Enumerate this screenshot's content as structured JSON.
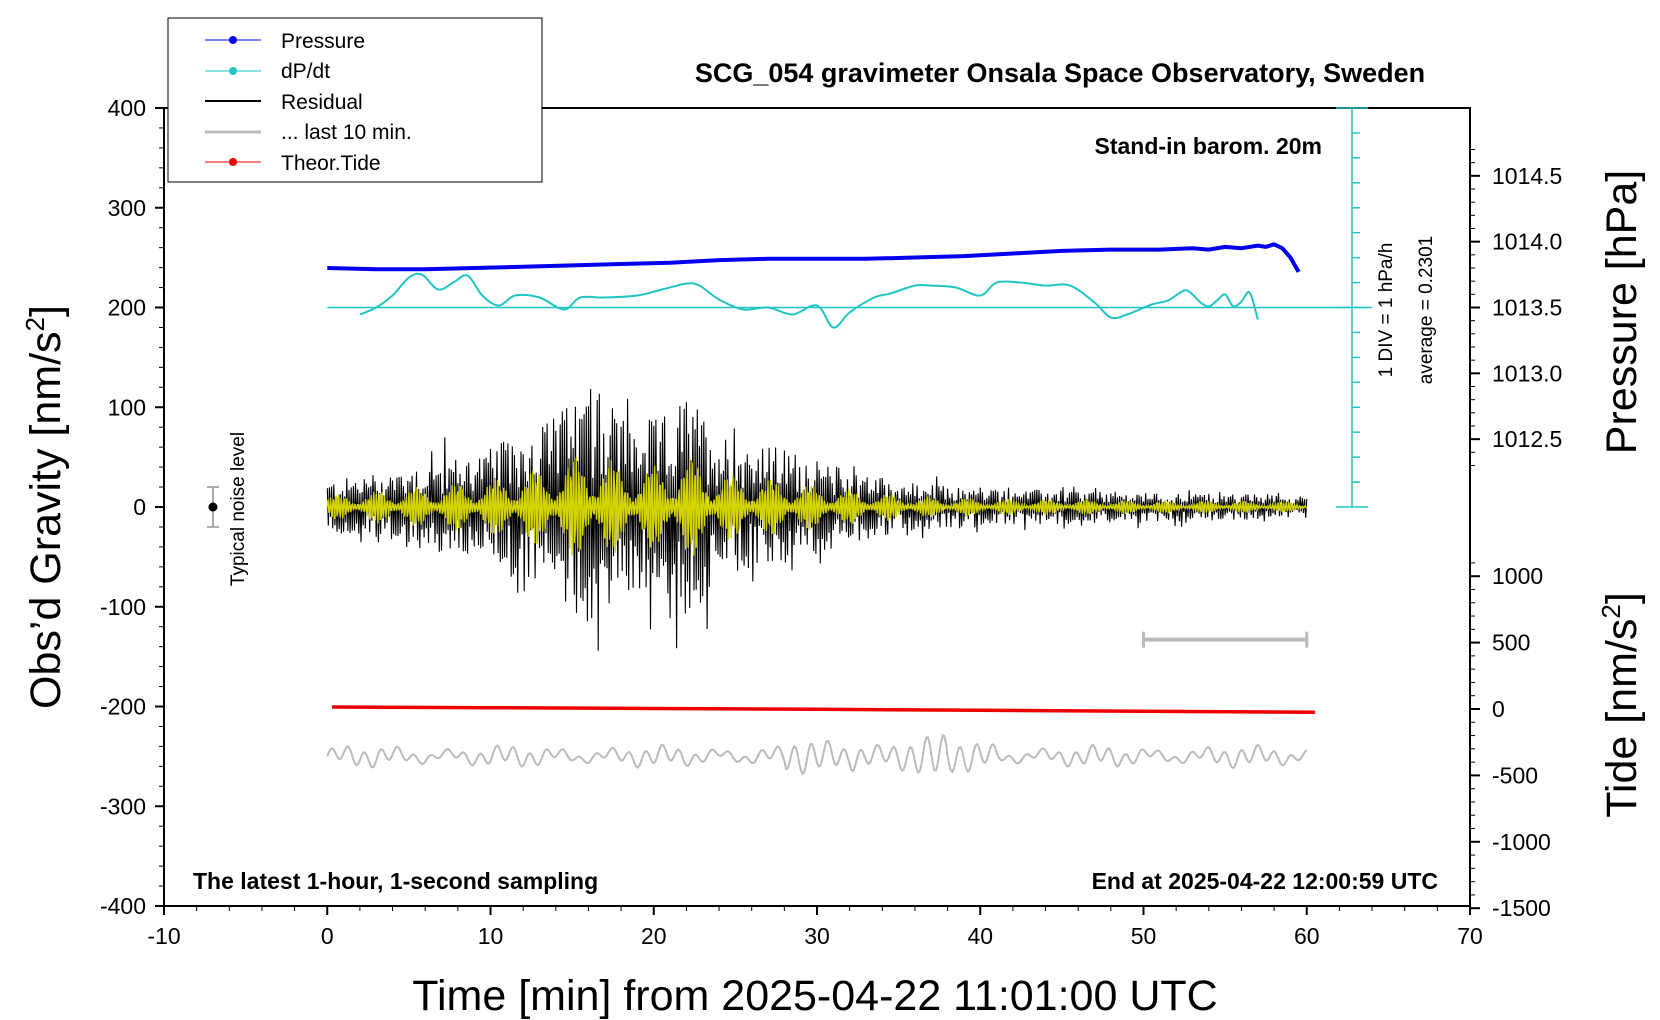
{
  "chart_data": {
    "type": "line",
    "title": "SCG_054 gravimeter Onsala Space Observatory, Sweden",
    "xlabel": "Time [min] from 2025-04-22 11:01:00 UTC",
    "ylabel_left": "Obs’d Gravity [nm/s",
    "ylabel_left_sup": "2",
    "ylabel_left_end": "]",
    "ylabel_right_top": "Pressure [hPa]",
    "ylabel_right_bottom": "Tide [nm/s",
    "ylabel_right_bottom_sup": "2",
    "ylabel_right_bottom_end": "]",
    "xlim": [
      -10,
      70
    ],
    "ylim": [
      -400,
      400
    ],
    "x_ticks": [
      "-10",
      "0",
      "10",
      "20",
      "30",
      "40",
      "50",
      "60",
      "70"
    ],
    "y_ticks": [
      "400",
      "300",
      "200",
      "100",
      "0",
      "-100",
      "-200",
      "-300",
      "-400"
    ],
    "pressure_ticks": [
      "1014.5",
      "1014.0",
      "1013.5",
      "1013.0",
      "1012.5"
    ],
    "tide_ticks": [
      "1000",
      "500",
      "0",
      "-500",
      "-1000",
      "-1500"
    ],
    "annotations": {
      "barometer": "Stand-in barom. 20m",
      "scale_div": "1 DIV = 1 hPa/h",
      "average": "average = 0.2301",
      "noise": "Typical noise level",
      "latest": "The latest 1-hour, 1-second sampling",
      "end": "End at 2025-04-22 12:00:59 UTC"
    },
    "legend": [
      "Pressure",
      "dP/dt",
      "Residual",
      "... last 10 min.",
      "Theor.Tide"
    ],
    "colors": {
      "pressure": "#0000ee",
      "dpdt": "#22c4c4",
      "residual": "#000000",
      "last10": "#bbbbbb",
      "tide": "#ee0000",
      "overlay": "#d4d400"
    },
    "series": [
      {
        "name": "Pressure",
        "unit": "hPa",
        "x": [
          0,
          3,
          6,
          9,
          12,
          15,
          18,
          21,
          24,
          27,
          30,
          33,
          36,
          39,
          42,
          45,
          48,
          51,
          53,
          54,
          55,
          56,
          57,
          57.5,
          58,
          58.5,
          59,
          59.5
        ],
        "values": [
          1013.8,
          1013.79,
          1013.79,
          1013.8,
          1013.81,
          1013.82,
          1013.83,
          1013.84,
          1013.86,
          1013.87,
          1013.87,
          1013.87,
          1013.88,
          1013.89,
          1013.91,
          1013.93,
          1013.94,
          1013.94,
          1013.95,
          1013.94,
          1013.96,
          1013.95,
          1013.97,
          1013.96,
          1013.98,
          1013.95,
          1013.88,
          1013.77
        ]
      },
      {
        "name": "dP/dt",
        "unit": "nm/s2 (plot scale)",
        "x": [
          2,
          3,
          4,
          5,
          5.8,
          6.8,
          7.8,
          8.6,
          9.5,
          10.5,
          11.5,
          13,
          14.5,
          15.5,
          17,
          19,
          20.5,
          22,
          22.8,
          24,
          25.5,
          27,
          28.5,
          30,
          31,
          32,
          33.5,
          34.5,
          36,
          37,
          38.5,
          40,
          41,
          42.5,
          44,
          45.5,
          47,
          48,
          49,
          50.5,
          51.5,
          52.5,
          53,
          53.5,
          54,
          54.5,
          55,
          55.5,
          56,
          56.5,
          57
        ],
        "values": [
          193,
          200,
          212,
          230,
          233,
          218,
          226,
          232,
          212,
          202,
          212,
          210,
          198,
          210,
          210,
          212,
          218,
          224,
          222,
          208,
          198,
          200,
          193,
          202,
          180,
          195,
          210,
          214,
          222,
          222,
          220,
          212,
          225,
          225,
          222,
          222,
          205,
          190,
          193,
          203,
          207,
          217,
          213,
          205,
          201,
          207,
          213,
          201,
          206,
          215,
          188
        ]
      },
      {
        "name": "dP/dt average",
        "unit": "nm/s2 (plot scale)",
        "x": [
          0,
          64
        ],
        "values": [
          200,
          200
        ]
      },
      {
        "name": "Residual",
        "unit": "nm/s2",
        "x_start": 0,
        "x_end": 60,
        "envelope_x": [
          0,
          4,
          8,
          10,
          12,
          14,
          16,
          17,
          19,
          21,
          22,
          24,
          26,
          28,
          30,
          33,
          36,
          40,
          45,
          50,
          55,
          60
        ],
        "envelope_values": [
          30,
          45,
          60,
          70,
          90,
          110,
          140,
          125,
          100,
          110,
          135,
          90,
          75,
          70,
          55,
          40,
          28,
          22,
          20,
          17,
          16,
          13
        ]
      },
      {
        "name": "... last 10 min.",
        "unit": "nm/s2",
        "x_start": 50,
        "x_end": 60,
        "values": [
          -133,
          -133
        ]
      },
      {
        "name": "Theor.Tide",
        "unit": "nm/s2 (tide axis)",
        "x": [
          0.3,
          10,
          20,
          30,
          40,
          50,
          60.5
        ],
        "values": [
          15,
          10,
          4,
          -2,
          -9,
          -17,
          -25
        ]
      },
      {
        "name": "Overlay (lower)",
        "unit": "nm/s2",
        "x_start": 0,
        "x_end": 60,
        "baseline": -250
      },
      {
        "name": "Typical noise level",
        "unit": "nm/s2",
        "x": -7,
        "values": [
          -20,
          0,
          20
        ]
      }
    ]
  }
}
